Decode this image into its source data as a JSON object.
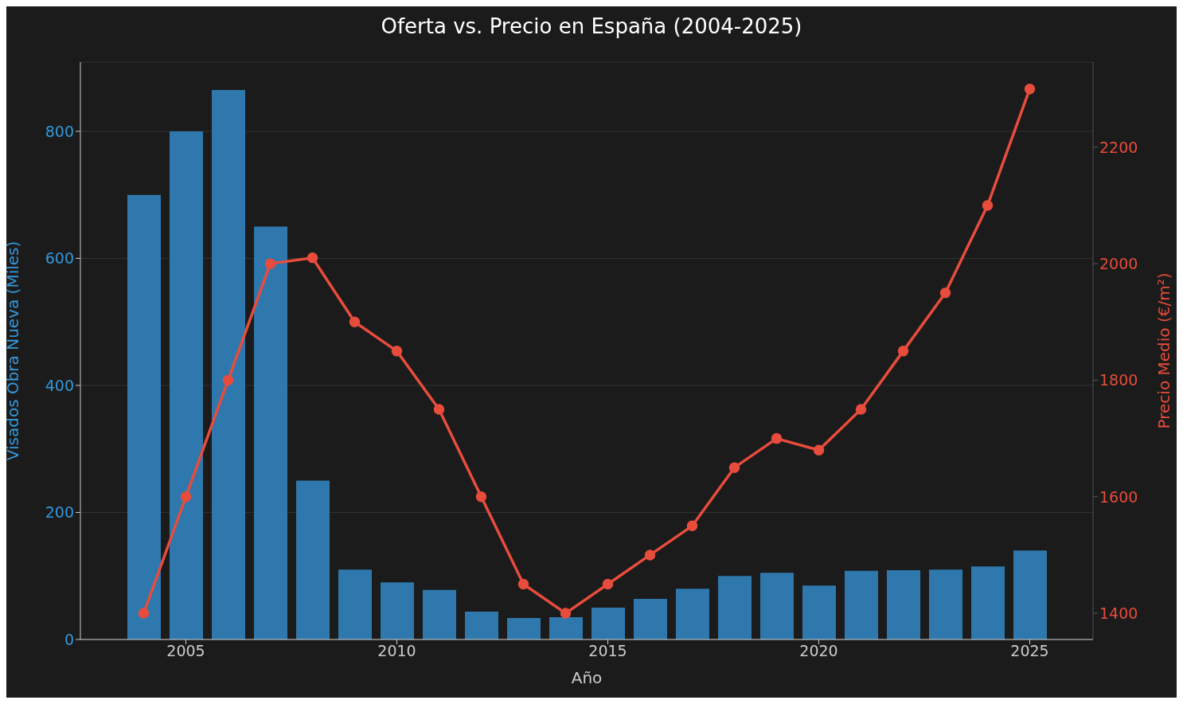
{
  "chart_data": {
    "type": "bar",
    "title": "Oferta vs. Precio en España (2004-2025)",
    "xlabel": "Año",
    "ylabel": "Visados Obra Nueva (Miles)",
    "y2label": "Precio Medio (€/m²)",
    "x": [
      2004,
      2005,
      2006,
      2007,
      2008,
      2009,
      2010,
      2011,
      2012,
      2013,
      2014,
      2015,
      2016,
      2017,
      2018,
      2019,
      2020,
      2021,
      2022,
      2023,
      2024,
      2025
    ],
    "series": [
      {
        "color": "#2e78ad",
        "values": [
          700,
          800,
          865,
          650,
          250,
          110,
          90,
          78,
          44,
          34,
          35,
          50,
          64,
          80,
          100,
          105,
          85,
          108,
          109,
          110,
          115,
          140
        ]
      },
      {
        "type": "line",
        "axis": "y2",
        "color": "#e74c3c",
        "marker": "circle",
        "values": [
          1400,
          1600,
          1800,
          2000,
          2010,
          1900,
          1850,
          1750,
          1600,
          1450,
          1400,
          1450,
          1500,
          1550,
          1650,
          1700,
          1680,
          1750,
          1850,
          1950,
          2100,
          2300
        ]
      }
    ],
    "xlim": [
      2002.5,
      2026.5
    ],
    "xticks": [
      2005,
      2010,
      2015,
      2020,
      2025
    ],
    "ylim": [
      0,
      909
    ],
    "yticks": [
      0,
      200,
      400,
      600,
      800
    ],
    "y2lim": [
      1355,
      2346
    ],
    "y2ticks": [
      1400,
      1600,
      1800,
      2000,
      2200
    ],
    "grid": "y"
  }
}
